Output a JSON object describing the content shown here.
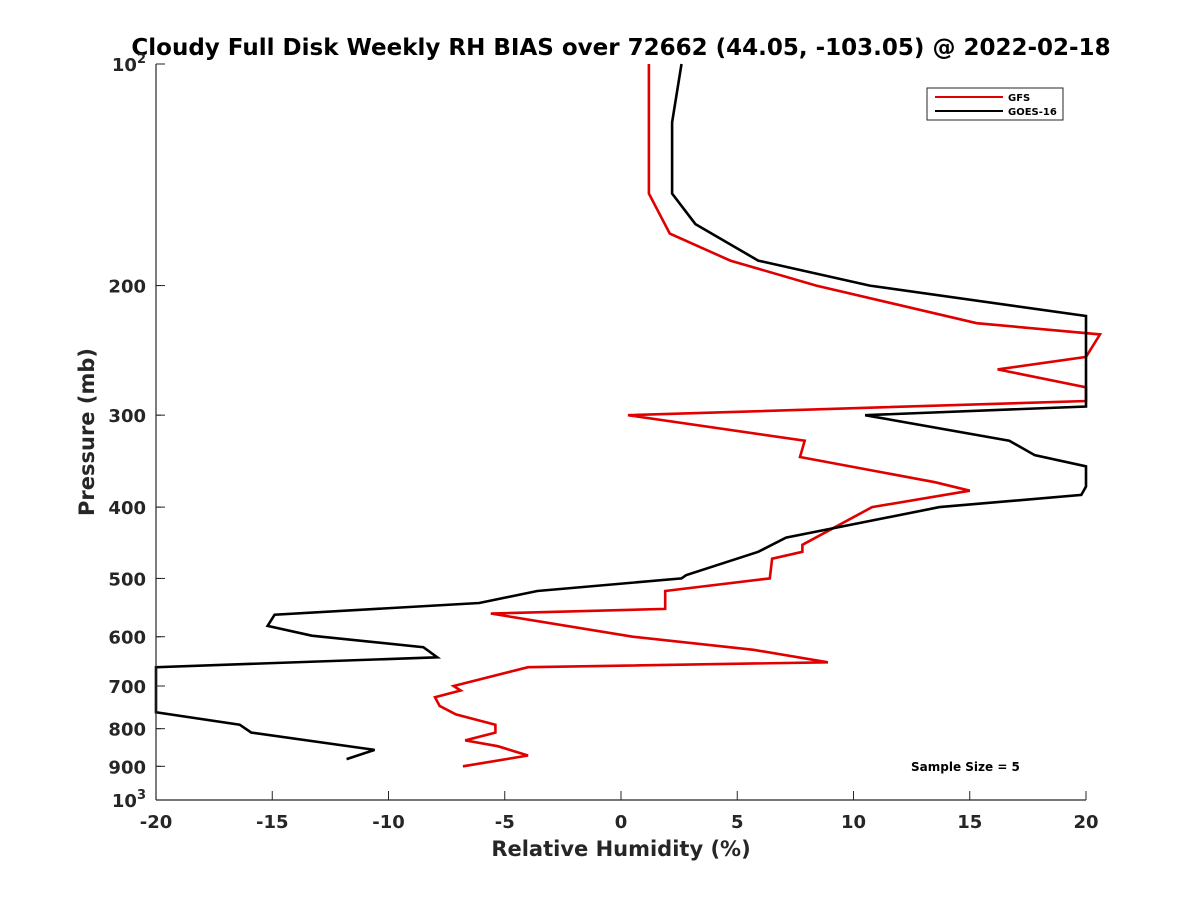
{
  "chart_data": {
    "type": "line",
    "title": "Cloudy Full Disk Weekly RH BIAS over 72662 (44.05, -103.05) @ 2022-02-18",
    "xlabel": "Relative Humidity (%)",
    "ylabel": "Pressure (mb)",
    "xlim": [
      -20,
      20
    ],
    "ylim": [
      100,
      1000
    ],
    "y_scale": "log",
    "y_reversed": true,
    "grid": false,
    "legend_position": "top-right",
    "x_ticks": [
      -20,
      -15,
      -10,
      -5,
      0,
      5,
      10,
      15,
      20
    ],
    "y_tick_labels": [
      {
        "value": 100,
        "base": "10",
        "exp": "2"
      },
      {
        "value": 200,
        "label": "200"
      },
      {
        "value": 300,
        "label": "300"
      },
      {
        "value": 400,
        "label": "400"
      },
      {
        "value": 500,
        "label": "500"
      },
      {
        "value": 600,
        "label": "600"
      },
      {
        "value": 700,
        "label": "700"
      },
      {
        "value": 800,
        "label": "800"
      },
      {
        "value": 900,
        "label": "900"
      },
      {
        "value": 1000,
        "base": "10",
        "exp": "3"
      }
    ],
    "annotation": "Sample Size = 5",
    "series": [
      {
        "name": "GFS",
        "color": "#e00000",
        "points": [
          [
            1.2,
            100
          ],
          [
            1.2,
            125
          ],
          [
            1.2,
            150
          ],
          [
            2.1,
            170
          ],
          [
            4.7,
            185
          ],
          [
            8.4,
            200
          ],
          [
            15.3,
            225
          ],
          [
            20.6,
            233
          ],
          [
            20.0,
            250
          ],
          [
            16.2,
            260
          ],
          [
            20.0,
            275
          ],
          [
            20.0,
            287
          ],
          [
            0.3,
            300
          ],
          [
            7.9,
            325
          ],
          [
            7.7,
            342
          ],
          [
            13.5,
            370
          ],
          [
            15.0,
            380
          ],
          [
            10.8,
            400
          ],
          [
            7.8,
            450
          ],
          [
            7.8,
            460
          ],
          [
            6.5,
            470
          ],
          [
            6.4,
            500
          ],
          [
            1.9,
            520
          ],
          [
            1.9,
            550
          ],
          [
            -5.6,
            558
          ],
          [
            0.5,
            600
          ],
          [
            5.7,
            625
          ],
          [
            8.9,
            650
          ],
          [
            -4.0,
            660
          ],
          [
            -7.2,
            700
          ],
          [
            -6.9,
            710
          ],
          [
            -8.0,
            725
          ],
          [
            -7.8,
            745
          ],
          [
            -7.1,
            765
          ],
          [
            -5.4,
            790
          ],
          [
            -5.4,
            810
          ],
          [
            -6.7,
            830
          ],
          [
            -5.3,
            845
          ],
          [
            -4.0,
            870
          ],
          [
            -6.8,
            900
          ]
        ]
      },
      {
        "name": "GOES-16",
        "color": "#000000",
        "points": [
          [
            2.6,
            100
          ],
          [
            2.2,
            120
          ],
          [
            2.2,
            150
          ],
          [
            3.2,
            165
          ],
          [
            5.9,
            185
          ],
          [
            10.7,
            200
          ],
          [
            20.0,
            220
          ],
          [
            20.0,
            292
          ],
          [
            10.5,
            300
          ],
          [
            16.7,
            325
          ],
          [
            17.8,
            340
          ],
          [
            20.0,
            352
          ],
          [
            20.0,
            375
          ],
          [
            19.8,
            385
          ],
          [
            13.7,
            400
          ],
          [
            7.1,
            440
          ],
          [
            5.9,
            460
          ],
          [
            2.8,
            495
          ],
          [
            2.6,
            500
          ],
          [
            -3.6,
            520
          ],
          [
            -6.1,
            540
          ],
          [
            -14.9,
            560
          ],
          [
            -15.2,
            580
          ],
          [
            -13.3,
            598
          ],
          [
            -8.5,
            620
          ],
          [
            -7.9,
            640
          ],
          [
            -20.0,
            660
          ],
          [
            -20.0,
            760
          ],
          [
            -16.4,
            790
          ],
          [
            -15.9,
            810
          ],
          [
            -10.6,
            855
          ],
          [
            -11.8,
            880
          ]
        ]
      }
    ]
  }
}
